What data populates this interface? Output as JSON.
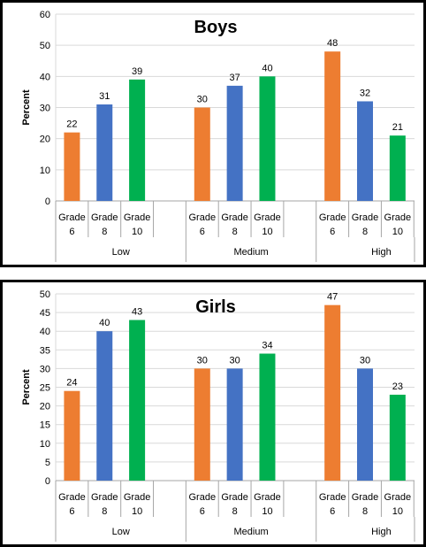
{
  "chart_data": [
    {
      "type": "bar",
      "title": "Boys",
      "ylabel": "Percent",
      "xlabel": "",
      "ylim": [
        0,
        60
      ],
      "ytick_step": 10,
      "grid": true,
      "legend": "none",
      "groups": [
        "Low",
        "Medium",
        "High"
      ],
      "categories": [
        [
          "Grade",
          "6"
        ],
        [
          "Grade",
          "8"
        ],
        [
          "Grade",
          "10"
        ]
      ],
      "series": [
        {
          "values": [
            22,
            31,
            39
          ]
        },
        {
          "values": [
            30,
            37,
            40
          ]
        },
        {
          "values": [
            48,
            32,
            21
          ]
        }
      ],
      "bar_colors": [
        "#ED7D31",
        "#4472C4",
        "#00B050"
      ]
    },
    {
      "type": "bar",
      "title": "Girls",
      "ylabel": "Percent",
      "xlabel": "",
      "ylim": [
        0,
        50
      ],
      "ytick_step": 5,
      "grid": true,
      "legend": "none",
      "groups": [
        "Low",
        "Medium",
        "High"
      ],
      "categories": [
        [
          "Grade",
          "6"
        ],
        [
          "Grade",
          "8"
        ],
        [
          "Grade",
          "10"
        ]
      ],
      "series": [
        {
          "values": [
            24,
            40,
            43
          ]
        },
        {
          "values": [
            30,
            30,
            34
          ]
        },
        {
          "values": [
            47,
            30,
            23
          ]
        }
      ],
      "bar_colors": [
        "#ED7D31",
        "#4472C4",
        "#00B050"
      ]
    }
  ]
}
